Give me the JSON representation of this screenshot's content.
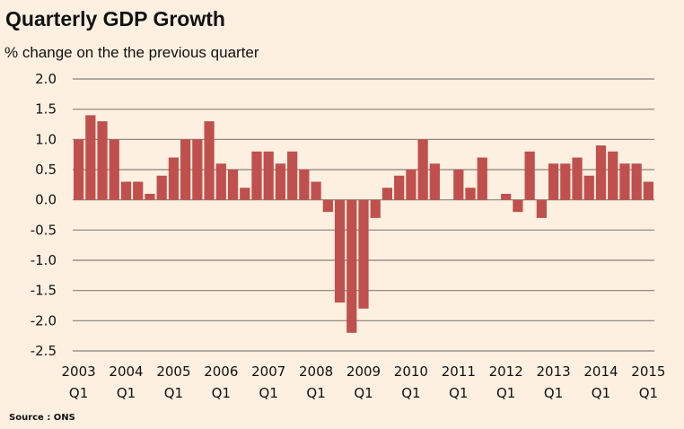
{
  "chart_data": {
    "type": "bar",
    "title": "Quarterly GDP Growth",
    "subtitle": "% change on the the previous quarter",
    "source": "Source : ONS",
    "xlabel": "",
    "ylabel": "",
    "ylim": [
      -2.5,
      2.0
    ],
    "yticks": [
      "2.0",
      "1.5",
      "1.0",
      "0.5",
      "0.0",
      "-0.5",
      "-1.0",
      "-1.5",
      "-2.0",
      "-2.5"
    ],
    "ytick_values": [
      2.0,
      1.5,
      1.0,
      0.5,
      0.0,
      -0.5,
      -1.0,
      -1.5,
      -2.0,
      -2.5
    ],
    "grid": true,
    "bar_color": "#c0504d",
    "x_tick_labels": [
      {
        "year": "2003",
        "q": "Q1",
        "index": 0
      },
      {
        "year": "2004",
        "q": "Q1",
        "index": 4
      },
      {
        "year": "2005",
        "q": "Q1",
        "index": 8
      },
      {
        "year": "2006",
        "q": "Q1",
        "index": 12
      },
      {
        "year": "2007",
        "q": "Q1",
        "index": 16
      },
      {
        "year": "2008",
        "q": "Q1",
        "index": 20
      },
      {
        "year": "2009",
        "q": "Q1",
        "index": 24
      },
      {
        "year": "2010",
        "q": "Q1",
        "index": 28
      },
      {
        "year": "2011",
        "q": "Q1",
        "index": 32
      },
      {
        "year": "2012",
        "q": "Q1",
        "index": 36
      },
      {
        "year": "2013",
        "q": "Q1",
        "index": 40
      },
      {
        "year": "2014",
        "q": "Q1",
        "index": 44
      },
      {
        "year": "2015",
        "q": "Q1",
        "index": 48
      }
    ],
    "categories": [
      "2003 Q1",
      "2003 Q2",
      "2003 Q3",
      "2003 Q4",
      "2004 Q1",
      "2004 Q2",
      "2004 Q3",
      "2004 Q4",
      "2005 Q1",
      "2005 Q2",
      "2005 Q3",
      "2005 Q4",
      "2006 Q1",
      "2006 Q2",
      "2006 Q3",
      "2006 Q4",
      "2007 Q1",
      "2007 Q2",
      "2007 Q3",
      "2007 Q4",
      "2008 Q1",
      "2008 Q2",
      "2008 Q3",
      "2008 Q4",
      "2009 Q1",
      "2009 Q2",
      "2009 Q3",
      "2009 Q4",
      "2010 Q1",
      "2010 Q2",
      "2010 Q3",
      "2010 Q4",
      "2011 Q1",
      "2011 Q2",
      "2011 Q3",
      "2011 Q4",
      "2012 Q1",
      "2012 Q2",
      "2012 Q3",
      "2012 Q4",
      "2013 Q1",
      "2013 Q2",
      "2013 Q3",
      "2013 Q4",
      "2014 Q1",
      "2014 Q2",
      "2014 Q3",
      "2014 Q4",
      "2015 Q1"
    ],
    "values": [
      1.0,
      1.4,
      1.3,
      1.0,
      0.3,
      0.3,
      0.1,
      0.4,
      0.7,
      1.0,
      1.0,
      1.3,
      0.6,
      0.5,
      0.2,
      0.8,
      0.8,
      0.6,
      0.8,
      0.5,
      0.3,
      -0.2,
      -1.7,
      -2.2,
      -1.8,
      -0.3,
      0.2,
      0.4,
      0.5,
      1.0,
      0.6,
      0.0,
      0.5,
      0.2,
      0.7,
      0.0,
      0.1,
      -0.2,
      0.8,
      -0.3,
      0.6,
      0.6,
      0.7,
      0.4,
      0.9,
      0.8,
      0.6,
      0.6,
      0.3
    ]
  }
}
